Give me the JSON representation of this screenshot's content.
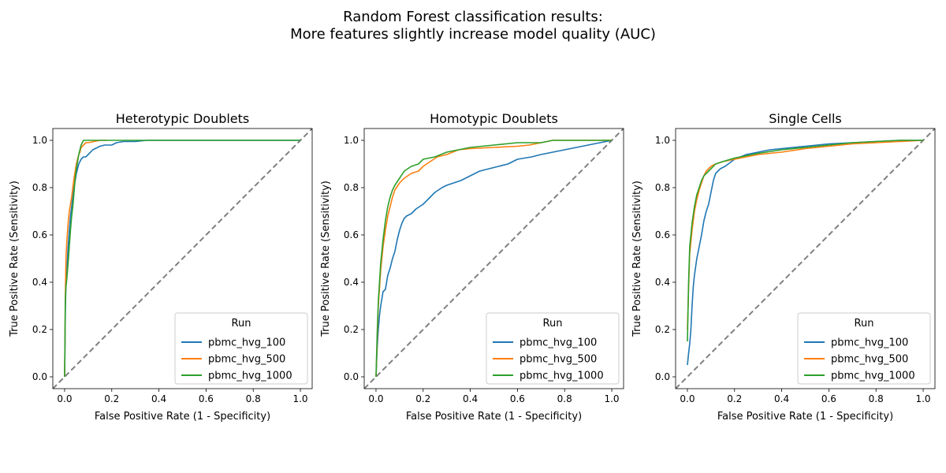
{
  "figure": {
    "suptitle_line1": "Random Forest classification results:",
    "suptitle_line2": "More features slightly increase model quality (AUC)"
  },
  "colors": {
    "pbmc_hvg_100": "#1f77b4",
    "pbmc_hvg_500": "#ff7f0e",
    "pbmc_hvg_1000": "#2ca02c",
    "diagonal": "#808080"
  },
  "chart_data": [
    {
      "type": "line",
      "title": "Heterotypic Doublets",
      "xlabel": "False Positive Rate (1 - Specificity)",
      "ylabel": "True Positive Rate (Sensitivity)",
      "xlim": [
        -0.05,
        1.05
      ],
      "ylim": [
        -0.05,
        1.05
      ],
      "xticks": [
        "0.0",
        "0.2",
        "0.4",
        "0.6",
        "0.8",
        "1.0"
      ],
      "yticks": [
        "0.0",
        "0.2",
        "0.4",
        "0.6",
        "0.8",
        "1.0"
      ],
      "legend_title": "Run",
      "legend_position": "lower-right",
      "diagonal": true,
      "series": [
        {
          "name": "pbmc_hvg_100",
          "color": "#1f77b4",
          "x": [
            0,
            0.003,
            0.006,
            0.01,
            0.015,
            0.02,
            0.025,
            0.03,
            0.035,
            0.04,
            0.045,
            0.05,
            0.055,
            0.06,
            0.065,
            0.07,
            0.08,
            0.09,
            0.1,
            0.12,
            0.14,
            0.15,
            0.17,
            0.2,
            0.22,
            0.25,
            0.3,
            0.35,
            0.4,
            0.45,
            0.6,
            0.8,
            1.0
          ],
          "y": [
            0,
            0.28,
            0.4,
            0.45,
            0.55,
            0.62,
            0.68,
            0.72,
            0.76,
            0.8,
            0.83,
            0.86,
            0.88,
            0.9,
            0.91,
            0.92,
            0.93,
            0.93,
            0.94,
            0.96,
            0.97,
            0.975,
            0.98,
            0.98,
            0.99,
            0.995,
            0.995,
            1.0,
            1.0,
            1.0,
            1.0,
            1.0,
            1.0
          ]
        },
        {
          "name": "pbmc_hvg_500",
          "color": "#ff7f0e",
          "x": [
            0,
            0.003,
            0.006,
            0.01,
            0.015,
            0.02,
            0.025,
            0.03,
            0.035,
            0.04,
            0.045,
            0.05,
            0.055,
            0.06,
            0.065,
            0.07,
            0.08,
            0.09,
            0.1,
            0.15,
            0.18
          ],
          "y": [
            0,
            0.35,
            0.5,
            0.58,
            0.65,
            0.7,
            0.73,
            0.76,
            0.8,
            0.84,
            0.87,
            0.9,
            0.92,
            0.94,
            0.95,
            0.97,
            0.98,
            0.99,
            0.99,
            1.0,
            1.0
          ]
        },
        {
          "name": "pbmc_hvg_1000",
          "color": "#2ca02c",
          "x": [
            0,
            0.003,
            0.006,
            0.01,
            0.015,
            0.02,
            0.025,
            0.03,
            0.035,
            0.04,
            0.045,
            0.05,
            0.055,
            0.06,
            0.065,
            0.07,
            0.075,
            0.08,
            0.1,
            0.2,
            0.4,
            0.6,
            0.8,
            1.0
          ],
          "y": [
            0,
            0.33,
            0.38,
            0.42,
            0.48,
            0.55,
            0.62,
            0.68,
            0.72,
            0.78,
            0.84,
            0.88,
            0.91,
            0.94,
            0.96,
            0.98,
            0.99,
            1.0,
            1.0,
            1.0,
            1.0,
            1.0,
            1.0,
            1.0
          ]
        }
      ]
    },
    {
      "type": "line",
      "title": "Homotypic Doublets",
      "xlabel": "False Positive Rate (1 - Specificity)",
      "ylabel": "True Positive Rate (Sensitivity)",
      "xlim": [
        -0.05,
        1.05
      ],
      "ylim": [
        -0.05,
        1.05
      ],
      "xticks": [
        "0.0",
        "0.2",
        "0.4",
        "0.6",
        "0.8",
        "1.0"
      ],
      "yticks": [
        "0.0",
        "0.2",
        "0.4",
        "0.6",
        "0.8",
        "1.0"
      ],
      "legend_title": "Run",
      "legend_position": "lower-right",
      "diagonal": true,
      "series": [
        {
          "name": "pbmc_hvg_100",
          "color": "#1f77b4",
          "x": [
            0,
            0.005,
            0.01,
            0.015,
            0.02,
            0.025,
            0.03,
            0.04,
            0.05,
            0.06,
            0.07,
            0.08,
            0.09,
            0.1,
            0.11,
            0.12,
            0.13,
            0.15,
            0.17,
            0.2,
            0.22,
            0.25,
            0.28,
            0.3,
            0.33,
            0.36,
            0.4,
            0.44,
            0.48,
            0.52,
            0.56,
            0.6,
            0.66,
            0.7,
            0.75,
            0.8,
            0.85,
            0.9,
            0.95,
            1.0
          ],
          "y": [
            0,
            0.12,
            0.2,
            0.26,
            0.3,
            0.33,
            0.36,
            0.37,
            0.43,
            0.46,
            0.5,
            0.53,
            0.58,
            0.62,
            0.65,
            0.67,
            0.68,
            0.69,
            0.71,
            0.73,
            0.75,
            0.78,
            0.8,
            0.81,
            0.82,
            0.83,
            0.85,
            0.87,
            0.88,
            0.89,
            0.9,
            0.92,
            0.93,
            0.94,
            0.95,
            0.96,
            0.97,
            0.98,
            0.99,
            1.0
          ]
        },
        {
          "name": "pbmc_hvg_500",
          "color": "#ff7f0e",
          "x": [
            0,
            0.005,
            0.01,
            0.02,
            0.03,
            0.04,
            0.05,
            0.06,
            0.07,
            0.08,
            0.1,
            0.12,
            0.15,
            0.18,
            0.2,
            0.23,
            0.26,
            0.3,
            0.35,
            0.4,
            0.5,
            0.6,
            0.65,
            0.7,
            0.75,
            0.8,
            1.0
          ],
          "y": [
            0,
            0.15,
            0.3,
            0.45,
            0.55,
            0.62,
            0.68,
            0.72,
            0.76,
            0.79,
            0.82,
            0.84,
            0.86,
            0.87,
            0.89,
            0.91,
            0.93,
            0.94,
            0.96,
            0.965,
            0.97,
            0.975,
            0.98,
            0.99,
            1.0,
            1.0,
            1.0
          ]
        },
        {
          "name": "pbmc_hvg_1000",
          "color": "#2ca02c",
          "x": [
            0,
            0.005,
            0.01,
            0.02,
            0.03,
            0.04,
            0.05,
            0.06,
            0.07,
            0.08,
            0.1,
            0.12,
            0.15,
            0.18,
            0.2,
            0.25,
            0.3,
            0.35,
            0.4,
            0.5,
            0.6,
            0.7,
            0.75,
            0.8,
            1.0
          ],
          "y": [
            0,
            0.18,
            0.32,
            0.48,
            0.58,
            0.66,
            0.72,
            0.76,
            0.79,
            0.81,
            0.84,
            0.87,
            0.89,
            0.9,
            0.92,
            0.93,
            0.95,
            0.96,
            0.97,
            0.98,
            0.99,
            0.99,
            1.0,
            1.0,
            1.0
          ]
        }
      ]
    },
    {
      "type": "line",
      "title": "Single Cells",
      "xlabel": "False Positive Rate (1 - Specificity)",
      "ylabel": "True Positive Rate (Sensitivity)",
      "xlim": [
        -0.05,
        1.05
      ],
      "ylim": [
        -0.05,
        1.05
      ],
      "xticks": [
        "0.0",
        "0.2",
        "0.4",
        "0.6",
        "0.8",
        "1.0"
      ],
      "yticks": [
        "0.0",
        "0.2",
        "0.4",
        "0.6",
        "0.8",
        "1.0"
      ],
      "legend_title": "Run",
      "legend_position": "lower-right",
      "diagonal": true,
      "series": [
        {
          "name": "pbmc_hvg_100",
          "color": "#1f77b4",
          "x": [
            0,
            0.005,
            0.01,
            0.015,
            0.02,
            0.025,
            0.03,
            0.04,
            0.05,
            0.06,
            0.07,
            0.08,
            0.09,
            0.1,
            0.11,
            0.12,
            0.14,
            0.16,
            0.2,
            0.25,
            0.3,
            0.35,
            0.4,
            0.5,
            0.6,
            0.7,
            0.8,
            0.9,
            1.0
          ],
          "y": [
            0.05,
            0.1,
            0.14,
            0.2,
            0.3,
            0.38,
            0.43,
            0.5,
            0.55,
            0.6,
            0.66,
            0.7,
            0.73,
            0.78,
            0.83,
            0.86,
            0.88,
            0.89,
            0.92,
            0.94,
            0.95,
            0.96,
            0.965,
            0.975,
            0.985,
            0.99,
            0.995,
            1.0,
            1.0
          ]
        },
        {
          "name": "pbmc_hvg_500",
          "color": "#ff7f0e",
          "x": [
            0,
            0.005,
            0.01,
            0.02,
            0.03,
            0.04,
            0.05,
            0.06,
            0.07,
            0.08,
            0.09,
            0.1,
            0.12,
            0.15,
            0.2,
            0.25,
            0.3,
            0.4,
            0.5,
            0.6,
            0.7,
            0.8,
            0.9,
            1.0
          ],
          "y": [
            0.2,
            0.38,
            0.52,
            0.62,
            0.7,
            0.75,
            0.79,
            0.82,
            0.85,
            0.87,
            0.88,
            0.89,
            0.9,
            0.91,
            0.92,
            0.93,
            0.94,
            0.95,
            0.965,
            0.975,
            0.985,
            0.99,
            0.995,
            1.0
          ]
        },
        {
          "name": "pbmc_hvg_1000",
          "color": "#2ca02c",
          "x": [
            0,
            0.005,
            0.01,
            0.02,
            0.03,
            0.04,
            0.05,
            0.06,
            0.07,
            0.08,
            0.09,
            0.1,
            0.12,
            0.15,
            0.2,
            0.25,
            0.3,
            0.4,
            0.5,
            0.6,
            0.7,
            0.8,
            0.9,
            1.0
          ],
          "y": [
            0.15,
            0.4,
            0.55,
            0.65,
            0.72,
            0.77,
            0.8,
            0.83,
            0.85,
            0.86,
            0.87,
            0.88,
            0.9,
            0.91,
            0.925,
            0.935,
            0.945,
            0.96,
            0.97,
            0.98,
            0.99,
            0.995,
            1.0,
            1.0
          ]
        }
      ]
    }
  ]
}
